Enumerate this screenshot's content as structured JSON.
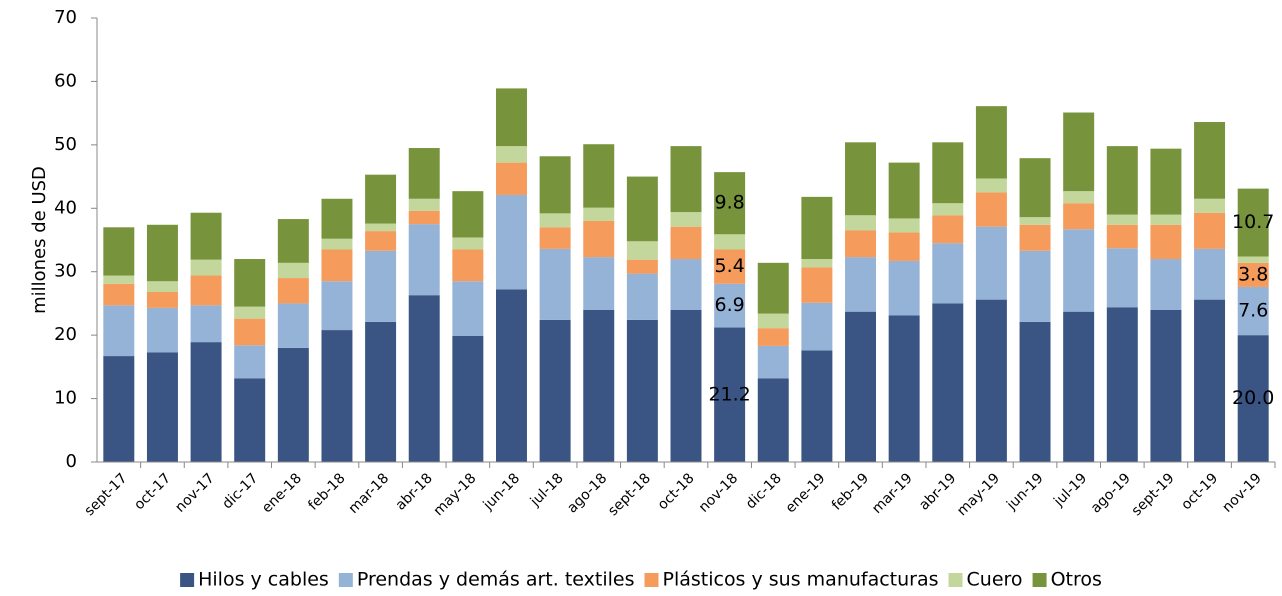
{
  "chart_data": {
    "type": "stacked_bar",
    "ylabel": "millones de  USD",
    "categories": [
      "sept-17",
      "oct-17",
      "nov-17",
      "dic-17",
      "ene-18",
      "feb-18",
      "mar-18",
      "abr-18",
      "may-18",
      "jun-18",
      "jul-18",
      "ago-18",
      "sept-18",
      "oct-18",
      "nov-18",
      "dic-18",
      "ene-19",
      "feb-19",
      "mar-19",
      "abr-19",
      "may-19",
      "jun-19",
      "jul-19",
      "ago-19",
      "sept-19",
      "oct-19",
      "nov-19"
    ],
    "series": [
      {
        "name": "Hilos y cables",
        "color": "#3a5583",
        "values": [
          16.7,
          17.3,
          18.9,
          13.2,
          18.0,
          20.8,
          22.1,
          26.3,
          19.9,
          27.2,
          22.4,
          24.0,
          22.4,
          24.0,
          21.2,
          13.2,
          17.6,
          23.7,
          23.1,
          25.0,
          25.6,
          22.1,
          23.7,
          24.4,
          24.0,
          25.6,
          20.0
        ],
        "value_labels": [
          null,
          null,
          null,
          null,
          null,
          null,
          null,
          null,
          null,
          null,
          null,
          null,
          null,
          null,
          "21.2",
          null,
          null,
          null,
          null,
          null,
          null,
          null,
          null,
          null,
          null,
          null,
          "20.0"
        ]
      },
      {
        "name": "Prendas y demás art. textiles",
        "color": "#95b3d7",
        "values": [
          8.0,
          7.0,
          5.8,
          5.2,
          7.0,
          7.7,
          11.2,
          11.2,
          8.6,
          14.9,
          11.2,
          8.3,
          7.3,
          8.0,
          6.9,
          5.1,
          7.5,
          8.6,
          8.6,
          9.5,
          11.5,
          11.2,
          13.0,
          9.3,
          8.0,
          8.0,
          7.6
        ],
        "value_labels": [
          null,
          null,
          null,
          null,
          null,
          null,
          null,
          null,
          null,
          null,
          null,
          null,
          null,
          null,
          "6.9",
          null,
          null,
          null,
          null,
          null,
          null,
          null,
          null,
          null,
          null,
          null,
          "7.6"
        ]
      },
      {
        "name": "Plásticos y sus manufacturas",
        "color": "#f59b5b",
        "values": [
          3.4,
          2.5,
          4.7,
          4.2,
          4.0,
          5.0,
          3.1,
          2.1,
          5.0,
          5.1,
          3.4,
          5.7,
          2.2,
          5.1,
          5.4,
          2.8,
          5.6,
          4.2,
          4.5,
          4.4,
          5.4,
          4.1,
          4.1,
          3.7,
          5.4,
          5.7,
          3.8
        ],
        "value_labels": [
          null,
          null,
          null,
          null,
          null,
          null,
          null,
          null,
          null,
          null,
          null,
          null,
          null,
          null,
          "5.4",
          null,
          null,
          null,
          null,
          null,
          null,
          null,
          null,
          null,
          null,
          null,
          "3.8"
        ]
      },
      {
        "name": "Cuero",
        "color": "#c3d69b",
        "values": [
          1.3,
          1.7,
          2.5,
          1.9,
          2.4,
          1.7,
          1.2,
          1.9,
          1.9,
          2.6,
          2.2,
          2.1,
          2.9,
          2.3,
          2.4,
          2.3,
          1.3,
          2.4,
          2.2,
          1.9,
          2.2,
          1.2,
          1.9,
          1.6,
          1.6,
          2.2,
          1.0
        ]
      },
      {
        "name": "Otros",
        "color": "#77933c",
        "values": [
          7.6,
          8.9,
          7.4,
          7.5,
          6.9,
          6.3,
          7.7,
          8.0,
          7.3,
          9.1,
          9.0,
          10.0,
          10.2,
          10.4,
          9.8,
          8.0,
          9.8,
          11.5,
          8.8,
          9.6,
          11.4,
          9.3,
          12.4,
          10.8,
          10.4,
          12.1,
          10.7
        ],
        "value_labels": [
          null,
          null,
          null,
          null,
          null,
          null,
          null,
          null,
          null,
          null,
          null,
          null,
          null,
          null,
          "9.8",
          null,
          null,
          null,
          null,
          null,
          null,
          null,
          null,
          null,
          null,
          null,
          "10.7"
        ]
      }
    ],
    "ylim": [
      0,
      70
    ],
    "yticks": [
      0,
      10,
      20,
      30,
      40,
      50,
      60,
      70
    ],
    "grid": false,
    "legend": "bottom"
  }
}
